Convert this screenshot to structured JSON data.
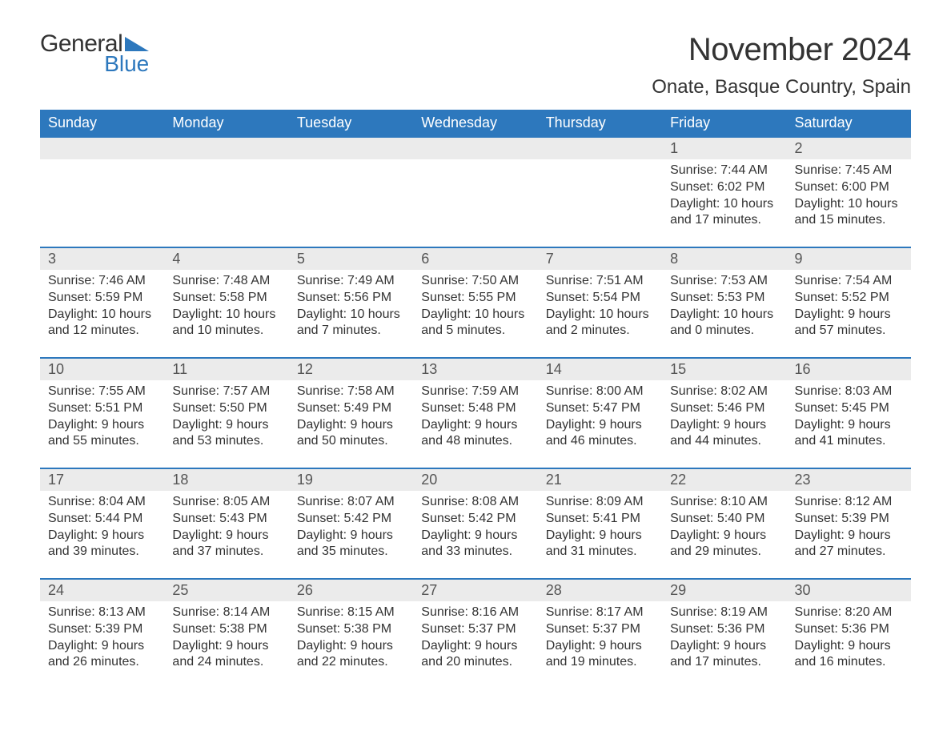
{
  "logo": {
    "general": "General",
    "blue": "Blue"
  },
  "title": "November 2024",
  "location": "Onate, Basque Country, Spain",
  "colors": {
    "header_bg": "#2d78bd",
    "header_text": "#ffffff",
    "daynum_bg": "#ebebeb",
    "border": "#2d78bd",
    "body_text": "#333333",
    "logo_blue": "#2d78bd"
  },
  "weekdays": [
    "Sunday",
    "Monday",
    "Tuesday",
    "Wednesday",
    "Thursday",
    "Friday",
    "Saturday"
  ],
  "labels": {
    "sunrise": "Sunrise: ",
    "sunset": "Sunset: ",
    "daylight": "Daylight: "
  },
  "weeks": [
    [
      null,
      null,
      null,
      null,
      null,
      {
        "d": "1",
        "rise": "7:44 AM",
        "set": "6:02 PM",
        "dl1": "10 hours",
        "dl2": "and 17 minutes."
      },
      {
        "d": "2",
        "rise": "7:45 AM",
        "set": "6:00 PM",
        "dl1": "10 hours",
        "dl2": "and 15 minutes."
      }
    ],
    [
      {
        "d": "3",
        "rise": "7:46 AM",
        "set": "5:59 PM",
        "dl1": "10 hours",
        "dl2": "and 12 minutes."
      },
      {
        "d": "4",
        "rise": "7:48 AM",
        "set": "5:58 PM",
        "dl1": "10 hours",
        "dl2": "and 10 minutes."
      },
      {
        "d": "5",
        "rise": "7:49 AM",
        "set": "5:56 PM",
        "dl1": "10 hours",
        "dl2": "and 7 minutes."
      },
      {
        "d": "6",
        "rise": "7:50 AM",
        "set": "5:55 PM",
        "dl1": "10 hours",
        "dl2": "and 5 minutes."
      },
      {
        "d": "7",
        "rise": "7:51 AM",
        "set": "5:54 PM",
        "dl1": "10 hours",
        "dl2": "and 2 minutes."
      },
      {
        "d": "8",
        "rise": "7:53 AM",
        "set": "5:53 PM",
        "dl1": "10 hours",
        "dl2": "and 0 minutes."
      },
      {
        "d": "9",
        "rise": "7:54 AM",
        "set": "5:52 PM",
        "dl1": "9 hours",
        "dl2": "and 57 minutes."
      }
    ],
    [
      {
        "d": "10",
        "rise": "7:55 AM",
        "set": "5:51 PM",
        "dl1": "9 hours",
        "dl2": "and 55 minutes."
      },
      {
        "d": "11",
        "rise": "7:57 AM",
        "set": "5:50 PM",
        "dl1": "9 hours",
        "dl2": "and 53 minutes."
      },
      {
        "d": "12",
        "rise": "7:58 AM",
        "set": "5:49 PM",
        "dl1": "9 hours",
        "dl2": "and 50 minutes."
      },
      {
        "d": "13",
        "rise": "7:59 AM",
        "set": "5:48 PM",
        "dl1": "9 hours",
        "dl2": "and 48 minutes."
      },
      {
        "d": "14",
        "rise": "8:00 AM",
        "set": "5:47 PM",
        "dl1": "9 hours",
        "dl2": "and 46 minutes."
      },
      {
        "d": "15",
        "rise": "8:02 AM",
        "set": "5:46 PM",
        "dl1": "9 hours",
        "dl2": "and 44 minutes."
      },
      {
        "d": "16",
        "rise": "8:03 AM",
        "set": "5:45 PM",
        "dl1": "9 hours",
        "dl2": "and 41 minutes."
      }
    ],
    [
      {
        "d": "17",
        "rise": "8:04 AM",
        "set": "5:44 PM",
        "dl1": "9 hours",
        "dl2": "and 39 minutes."
      },
      {
        "d": "18",
        "rise": "8:05 AM",
        "set": "5:43 PM",
        "dl1": "9 hours",
        "dl2": "and 37 minutes."
      },
      {
        "d": "19",
        "rise": "8:07 AM",
        "set": "5:42 PM",
        "dl1": "9 hours",
        "dl2": "and 35 minutes."
      },
      {
        "d": "20",
        "rise": "8:08 AM",
        "set": "5:42 PM",
        "dl1": "9 hours",
        "dl2": "and 33 minutes."
      },
      {
        "d": "21",
        "rise": "8:09 AM",
        "set": "5:41 PM",
        "dl1": "9 hours",
        "dl2": "and 31 minutes."
      },
      {
        "d": "22",
        "rise": "8:10 AM",
        "set": "5:40 PM",
        "dl1": "9 hours",
        "dl2": "and 29 minutes."
      },
      {
        "d": "23",
        "rise": "8:12 AM",
        "set": "5:39 PM",
        "dl1": "9 hours",
        "dl2": "and 27 minutes."
      }
    ],
    [
      {
        "d": "24",
        "rise": "8:13 AM",
        "set": "5:39 PM",
        "dl1": "9 hours",
        "dl2": "and 26 minutes."
      },
      {
        "d": "25",
        "rise": "8:14 AM",
        "set": "5:38 PM",
        "dl1": "9 hours",
        "dl2": "and 24 minutes."
      },
      {
        "d": "26",
        "rise": "8:15 AM",
        "set": "5:38 PM",
        "dl1": "9 hours",
        "dl2": "and 22 minutes."
      },
      {
        "d": "27",
        "rise": "8:16 AM",
        "set": "5:37 PM",
        "dl1": "9 hours",
        "dl2": "and 20 minutes."
      },
      {
        "d": "28",
        "rise": "8:17 AM",
        "set": "5:37 PM",
        "dl1": "9 hours",
        "dl2": "and 19 minutes."
      },
      {
        "d": "29",
        "rise": "8:19 AM",
        "set": "5:36 PM",
        "dl1": "9 hours",
        "dl2": "and 17 minutes."
      },
      {
        "d": "30",
        "rise": "8:20 AM",
        "set": "5:36 PM",
        "dl1": "9 hours",
        "dl2": "and 16 minutes."
      }
    ]
  ]
}
